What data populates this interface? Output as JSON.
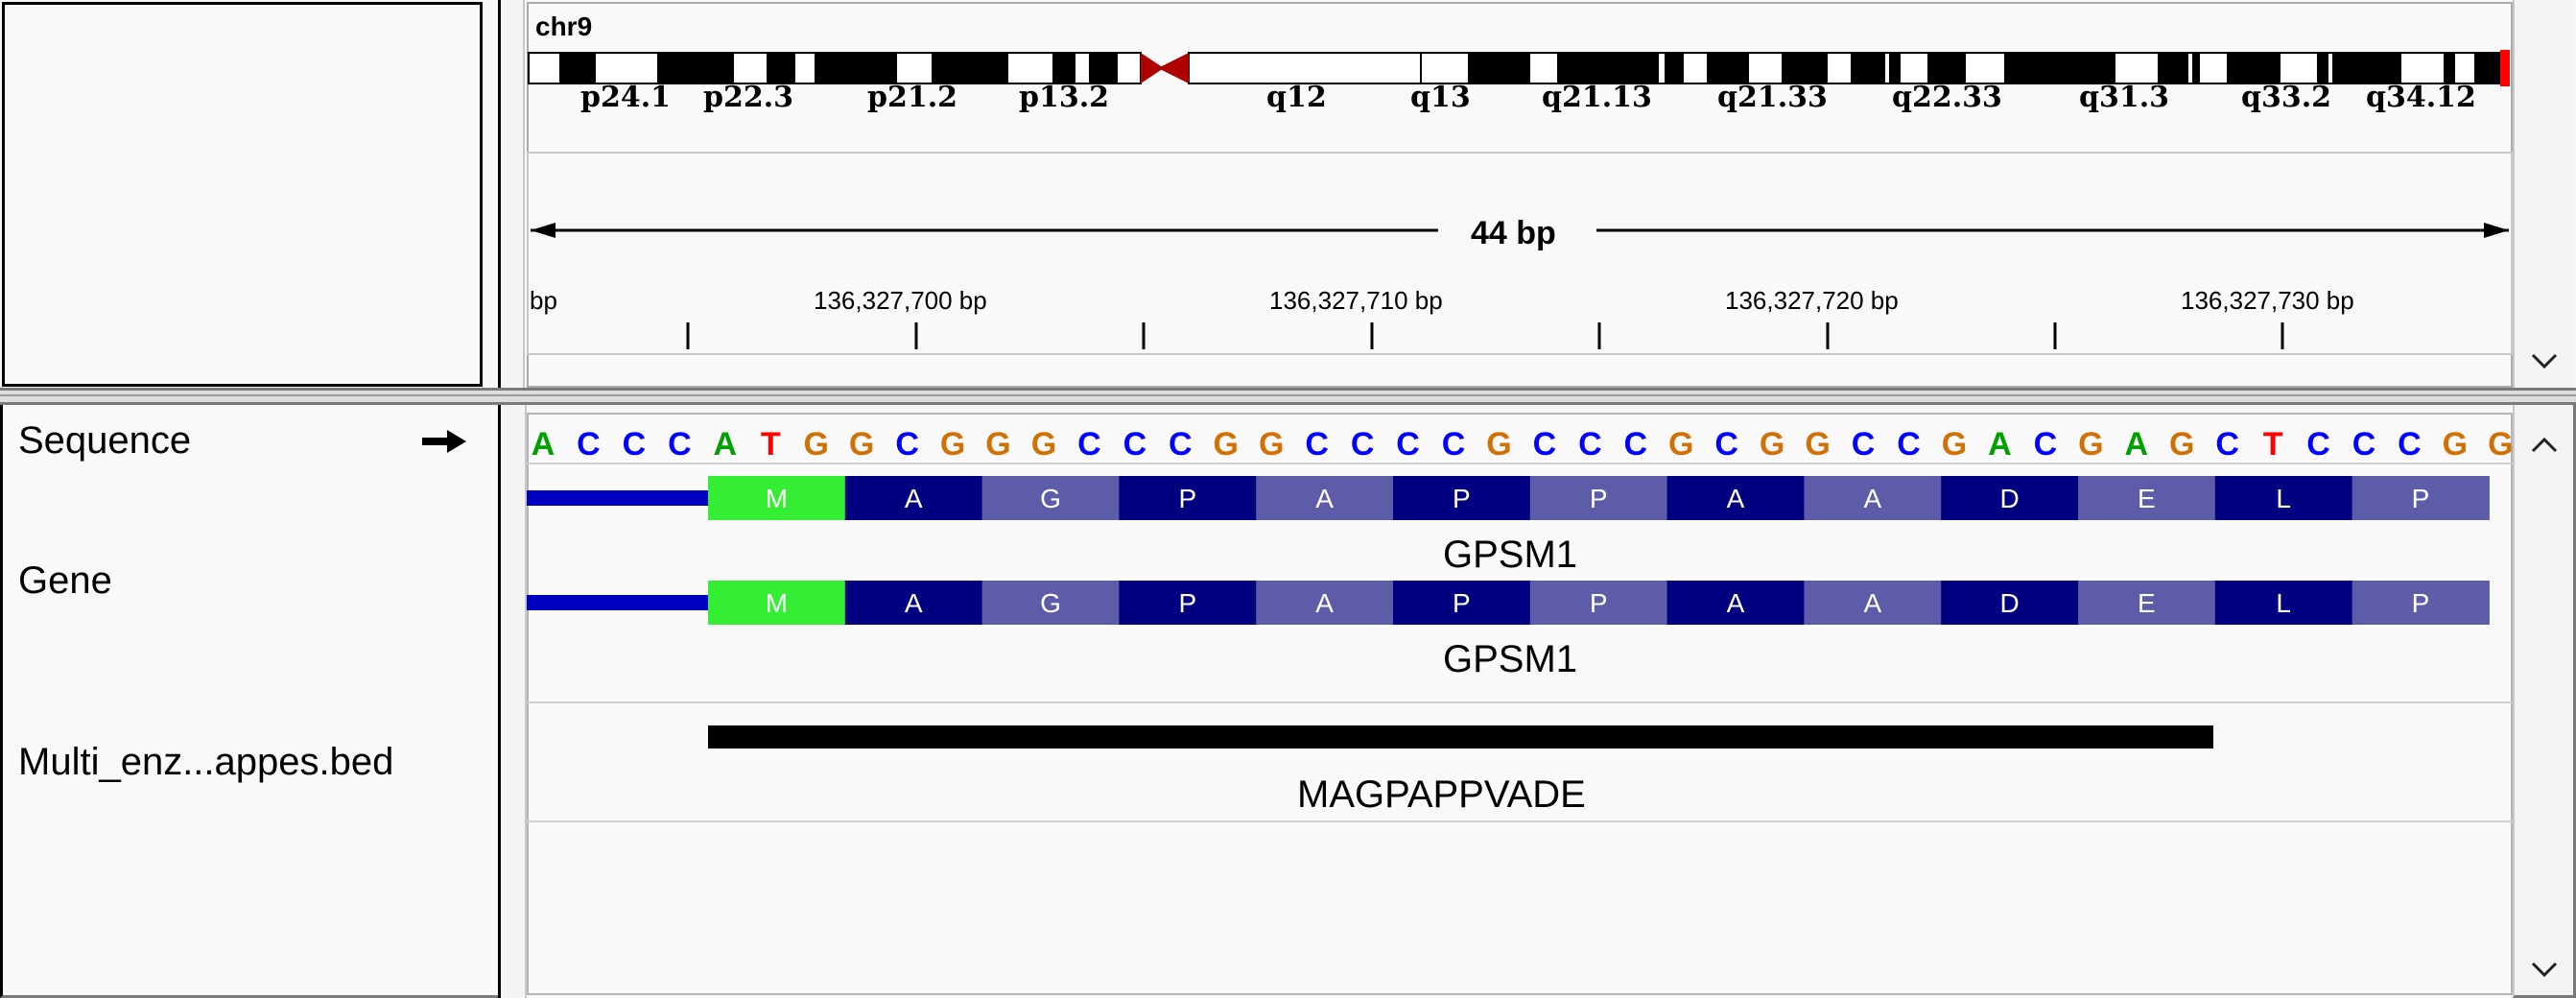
{
  "header": {
    "chromosome": "chr9",
    "bands": [
      "p24.1",
      "p22.3",
      "p21.2",
      "p13.2",
      "q12",
      "q13",
      "q21.13",
      "q21.33",
      "q22.33",
      "q31.3",
      "q33.2",
      "q34.12"
    ],
    "span_label": "44 bp",
    "ruler_left_fragment": "bp",
    "ruler_ticks": [
      "136,327,700 bp",
      "136,327,710 bp",
      "136,327,720 bp",
      "136,327,730 bp"
    ]
  },
  "tracks": {
    "sequence": {
      "name": "Sequence",
      "strand_icon": "right-arrow-icon",
      "bases": [
        "A",
        "C",
        "C",
        "C",
        "A",
        "T",
        "G",
        "G",
        "C",
        "G",
        "G",
        "G",
        "C",
        "C",
        "C",
        "G",
        "G",
        "C",
        "C",
        "C",
        "C",
        "G",
        "C",
        "C",
        "C",
        "G",
        "C",
        "G",
        "G",
        "C",
        "C",
        "G",
        "A",
        "C",
        "G",
        "A",
        "G",
        "C",
        "T",
        "C",
        "C",
        "C",
        "G",
        "G"
      ],
      "colors": {
        "A": "#00a000",
        "C": "#0000ff",
        "G": "#d17105",
        "T": "#ff0000"
      }
    },
    "gene": {
      "name": "Gene",
      "rows": [
        {
          "amino_acids": [
            "M",
            "A",
            "G",
            "P",
            "A",
            "P",
            "P",
            "A",
            "A",
            "D",
            "E",
            "L",
            "P"
          ],
          "label": "GPSM1"
        },
        {
          "amino_acids": [
            "M",
            "A",
            "G",
            "P",
            "A",
            "P",
            "P",
            "A",
            "A",
            "D",
            "E",
            "L",
            "P"
          ],
          "label": "GPSM1"
        }
      ],
      "colors": {
        "utr": "#0000c0",
        "start": "#33ee33",
        "dark": "#000080",
        "light": "#5c5ca8"
      }
    },
    "bed": {
      "name": "Multi_enz...appes.bed",
      "feature_label": "MAGPAPPVADE"
    }
  }
}
